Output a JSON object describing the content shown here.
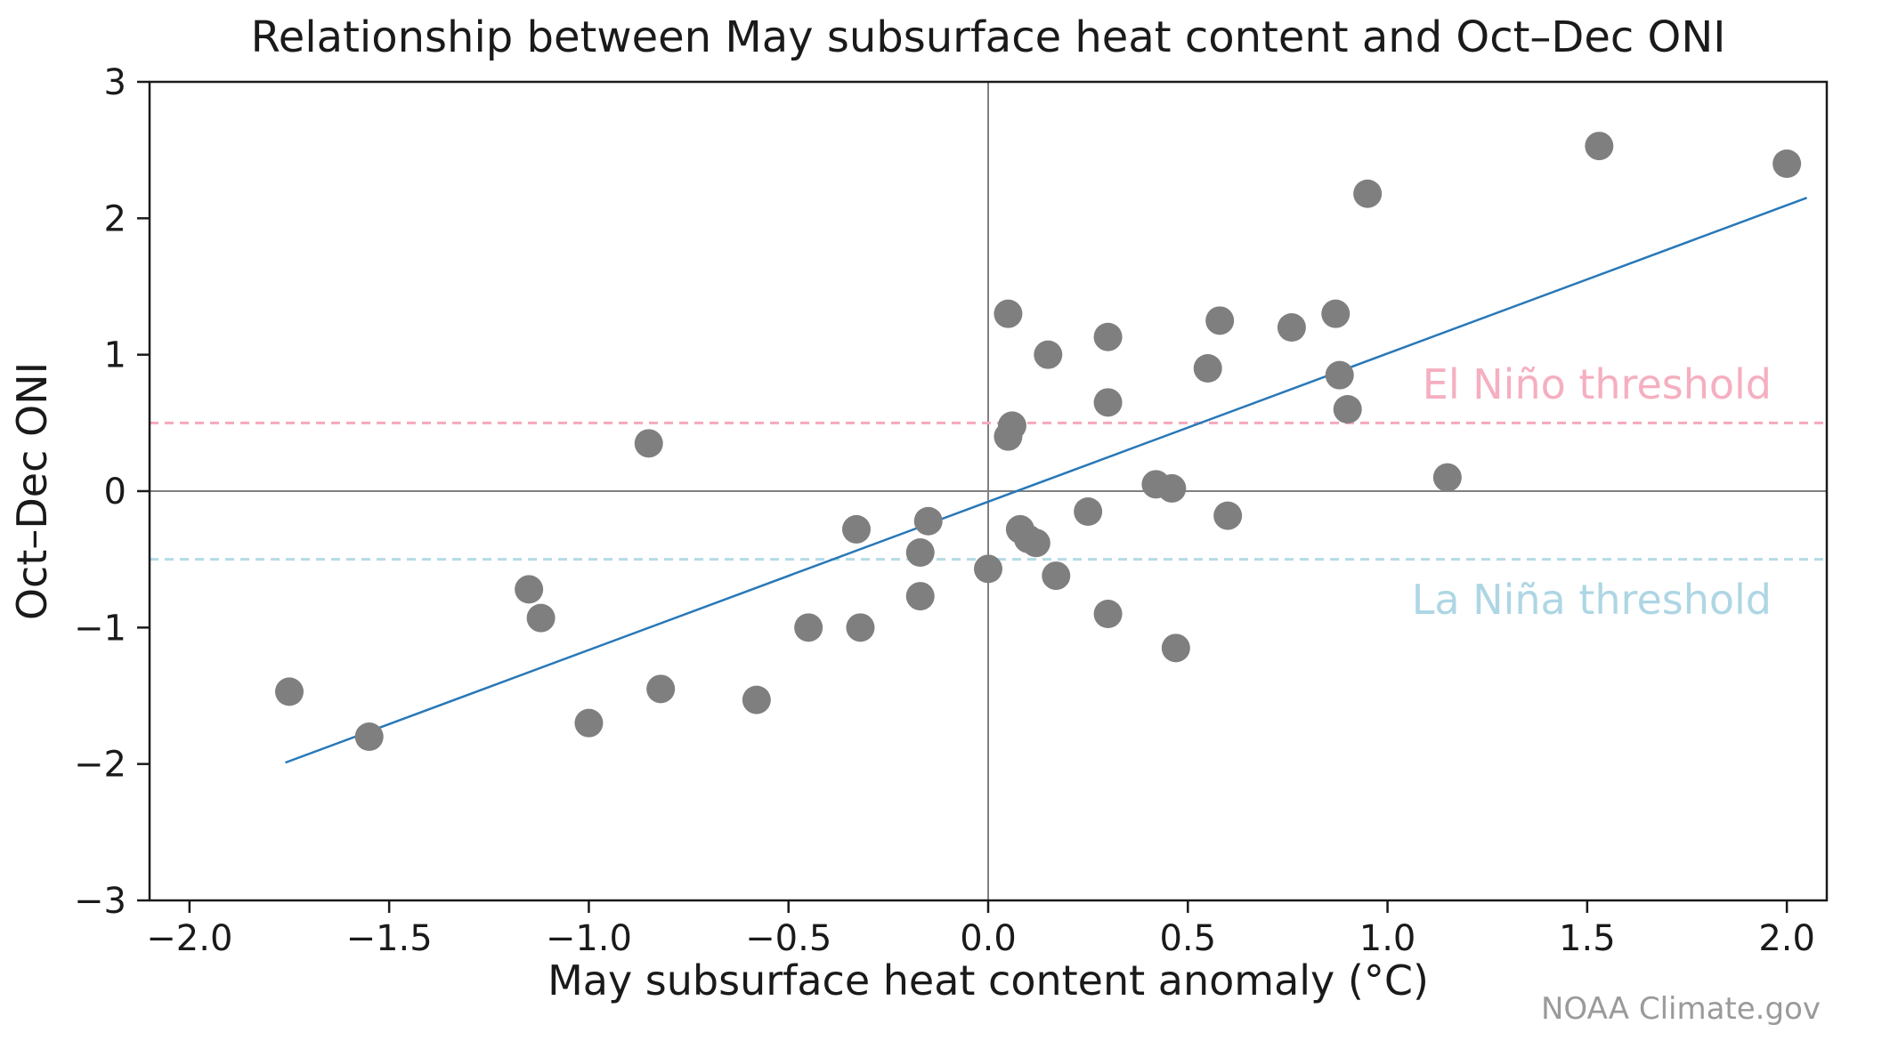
{
  "title": "Relationship between May subsurface heat content and Oct–Dec ONI",
  "credit": "NOAA Climate.gov",
  "chart_data": {
    "type": "scatter",
    "title": "Relationship between May subsurface heat content and Oct–Dec ONI",
    "xlabel": "May subsurface heat content anomaly (°C)",
    "ylabel": "Oct–Dec ONI",
    "xlim": [
      -2.1,
      2.1
    ],
    "ylim": [
      -3,
      3
    ],
    "x_ticks": [
      -2.0,
      -1.5,
      -1.0,
      -0.5,
      0.0,
      0.5,
      1.0,
      1.5,
      2.0
    ],
    "y_ticks": [
      -3,
      -2,
      -1,
      0,
      1,
      2,
      3
    ],
    "grid": false,
    "zero_lines": true,
    "points": [
      [
        -1.75,
        -1.47
      ],
      [
        -1.55,
        -1.8
      ],
      [
        -1.15,
        -0.72
      ],
      [
        -1.12,
        -0.93
      ],
      [
        -1.0,
        -1.7
      ],
      [
        -0.85,
        0.35
      ],
      [
        -0.82,
        -1.45
      ],
      [
        -0.58,
        -1.53
      ],
      [
        -0.45,
        -1.0
      ],
      [
        -0.33,
        -0.28
      ],
      [
        -0.32,
        -1.0
      ],
      [
        -0.17,
        -0.45
      ],
      [
        -0.17,
        -0.77
      ],
      [
        -0.15,
        -0.22
      ],
      [
        0.0,
        -0.57
      ],
      [
        0.05,
        1.3
      ],
      [
        0.06,
        0.48
      ],
      [
        0.05,
        0.4
      ],
      [
        0.08,
        -0.28
      ],
      [
        0.1,
        -0.35
      ],
      [
        0.12,
        -0.38
      ],
      [
        0.15,
        1.0
      ],
      [
        0.17,
        -0.62
      ],
      [
        0.25,
        -0.15
      ],
      [
        0.3,
        1.13
      ],
      [
        0.3,
        0.65
      ],
      [
        0.3,
        -0.9
      ],
      [
        0.42,
        0.05
      ],
      [
        0.46,
        0.02
      ],
      [
        0.47,
        -1.15
      ],
      [
        0.55,
        0.9
      ],
      [
        0.58,
        1.25
      ],
      [
        0.6,
        -0.18
      ],
      [
        0.76,
        1.2
      ],
      [
        0.87,
        1.3
      ],
      [
        0.88,
        0.85
      ],
      [
        0.9,
        0.6
      ],
      [
        0.95,
        2.18
      ],
      [
        1.15,
        0.1
      ],
      [
        1.53,
        2.53
      ],
      [
        2.0,
        2.4
      ]
    ],
    "regression_line": {
      "x1": -1.76,
      "y1": -1.99,
      "x2": 2.05,
      "y2": 2.15
    },
    "thresholds": [
      {
        "label": "El Niño threshold",
        "value": 0.5,
        "line_color": "#f5a8bc",
        "label_color": "#f5afc0"
      },
      {
        "label": "La Niña threshold",
        "value": -0.5,
        "line_color": "#b2dbe6",
        "label_color": "#aed6e4"
      }
    ],
    "colors": {
      "points": "#7f7f7f",
      "regression_line": "#2878b8",
      "zero_lines": "#808080",
      "axis": "#1a1a1a"
    }
  },
  "labels": {
    "el_nino": "El Niño threshold",
    "la_nina": "La Niña threshold"
  }
}
